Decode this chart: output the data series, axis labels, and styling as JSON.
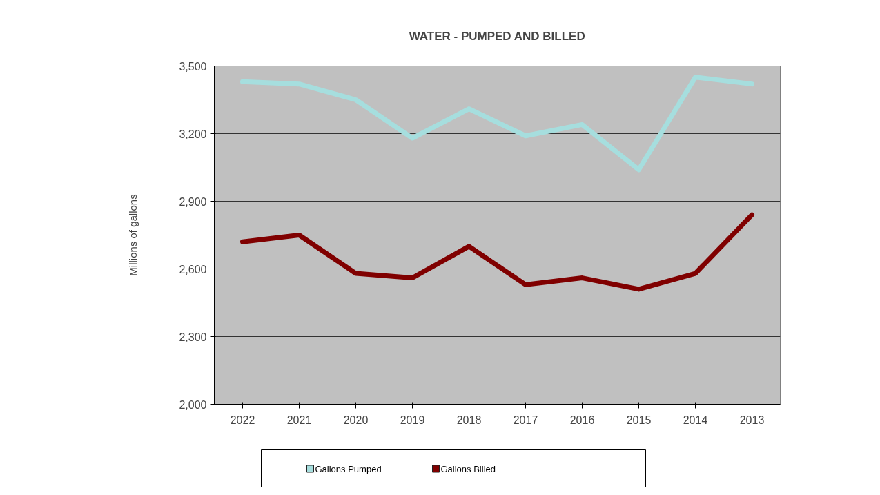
{
  "chart_data": {
    "type": "line",
    "title": "WATER - PUMPED AND BILLED",
    "ylabel": "Millions of gallons",
    "categories": [
      "2022",
      "2021",
      "2020",
      "2019",
      "2018",
      "2017",
      "2016",
      "2015",
      "2014",
      "2013"
    ],
    "series": [
      {
        "name": "Gallons Pumped",
        "color": "#a6dede",
        "values": [
          3430,
          3420,
          3350,
          3180,
          3310,
          3190,
          3240,
          3040,
          3450,
          3420
        ]
      },
      {
        "name": "Gallons Billed",
        "color": "#800000",
        "values": [
          2720,
          2750,
          2580,
          2560,
          2700,
          2530,
          2560,
          2510,
          2580,
          2840
        ]
      }
    ],
    "ylim": [
      2000,
      3500
    ],
    "yticks": [
      {
        "value": 2000,
        "label": "2,000"
      },
      {
        "value": 2300,
        "label": "2,300"
      },
      {
        "value": 2600,
        "label": "2,600"
      },
      {
        "value": 2900,
        "label": "2,900"
      },
      {
        "value": 3200,
        "label": "3,200"
      },
      {
        "value": 3500,
        "label": "3,500"
      }
    ],
    "grid": "y",
    "legend": "bottom"
  }
}
